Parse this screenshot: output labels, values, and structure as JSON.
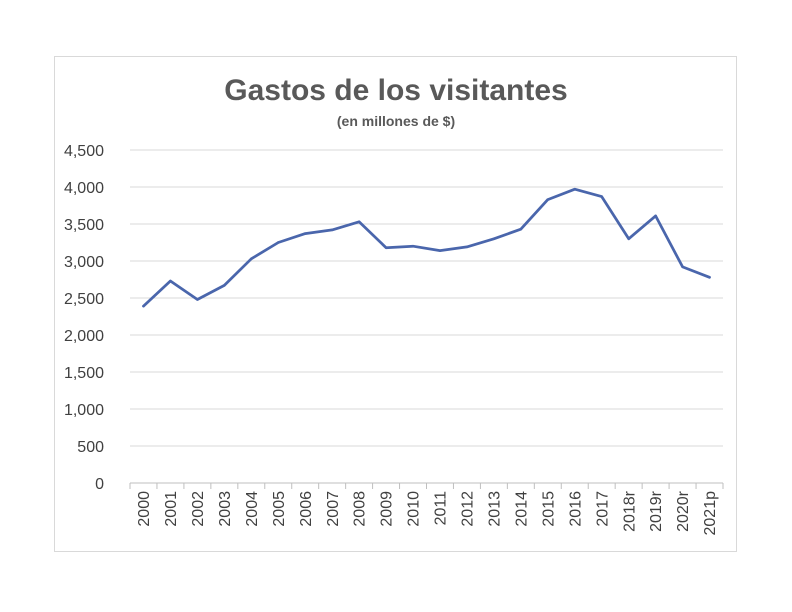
{
  "chart_data": {
    "type": "line",
    "title": "Gastos de los visitantes",
    "subtitle": "(en millones de $)",
    "xlabel": "",
    "ylabel": "",
    "ylim": [
      0,
      4500
    ],
    "y_ticks": [
      0,
      500,
      1000,
      1500,
      2000,
      2500,
      3000,
      3500,
      4000,
      4500
    ],
    "y_tick_labels": [
      "0",
      "500",
      "1,000",
      "1,500",
      "2,000",
      "2,500",
      "3,000",
      "3,500",
      "4,000",
      "4,500"
    ],
    "grid": true,
    "legend": "none",
    "categories": [
      "2000",
      "2001",
      "2002",
      "2003",
      "2004",
      "2005",
      "2006",
      "2007",
      "2008",
      "2009",
      "2010",
      "2011",
      "2012",
      "2013",
      "2014",
      "2015",
      "2016",
      "2017",
      "2018r",
      "2019r",
      "2020r",
      "2021p"
    ],
    "series": [
      {
        "values": [
          2390,
          2730,
          2480,
          2670,
          3030,
          3250,
          3370,
          3420,
          3530,
          3180,
          3200,
          3140,
          3190,
          3300,
          3430,
          3830,
          3970,
          3870,
          3300,
          3610,
          2920,
          2780
        ]
      }
    ],
    "colors": {
      "line": "#4a66ac",
      "grid": "#d9d9d9",
      "axis": "#bfbfbf"
    }
  }
}
